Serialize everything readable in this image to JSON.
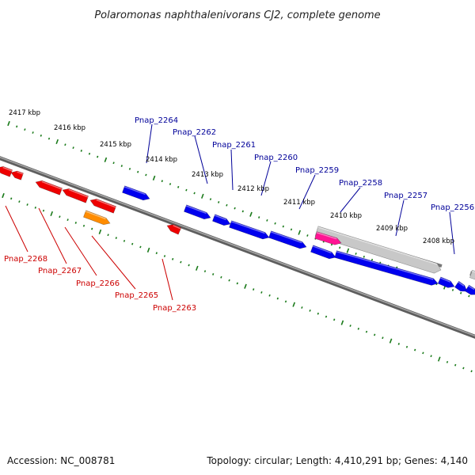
{
  "title": "Polaromonas naphthalenivorans CJ2, complete genome",
  "footer": {
    "accession": "Accession: NC_008781",
    "summary": "Topology: circular; Length: 4,410,291 bp; Genes: 4,140"
  },
  "kbp_labels": [
    "2417 kbp",
    "2416 kbp",
    "2415 kbp",
    "2414 kbp",
    "2413 kbp",
    "2412 kbp",
    "2411 kbp",
    "2410 kbp",
    "2409 kbp",
    "2408 kbp"
  ],
  "forward_genes": [
    "Pnap_2264",
    "Pnap_2262",
    "Pnap_2261",
    "Pnap_2260",
    "Pnap_2259",
    "Pnap_2258",
    "Pnap_2257",
    "Pnap_2256"
  ],
  "reverse_genes": [
    "Pnap_2268",
    "Pnap_2267",
    "Pnap_2266",
    "Pnap_2265",
    "Pnap_2263"
  ],
  "colors": {
    "backbone": "#7a7a7a",
    "ticks": "#1a7a1a",
    "forward_gene": "#0000ee",
    "reverse_gene": "#ee0000",
    "orange_gene": "#ff8c00",
    "pink_gene": "#ff1493",
    "gray_region": "#c8c8c8",
    "forward_label": "#000099",
    "reverse_label": "#cc0000"
  }
}
